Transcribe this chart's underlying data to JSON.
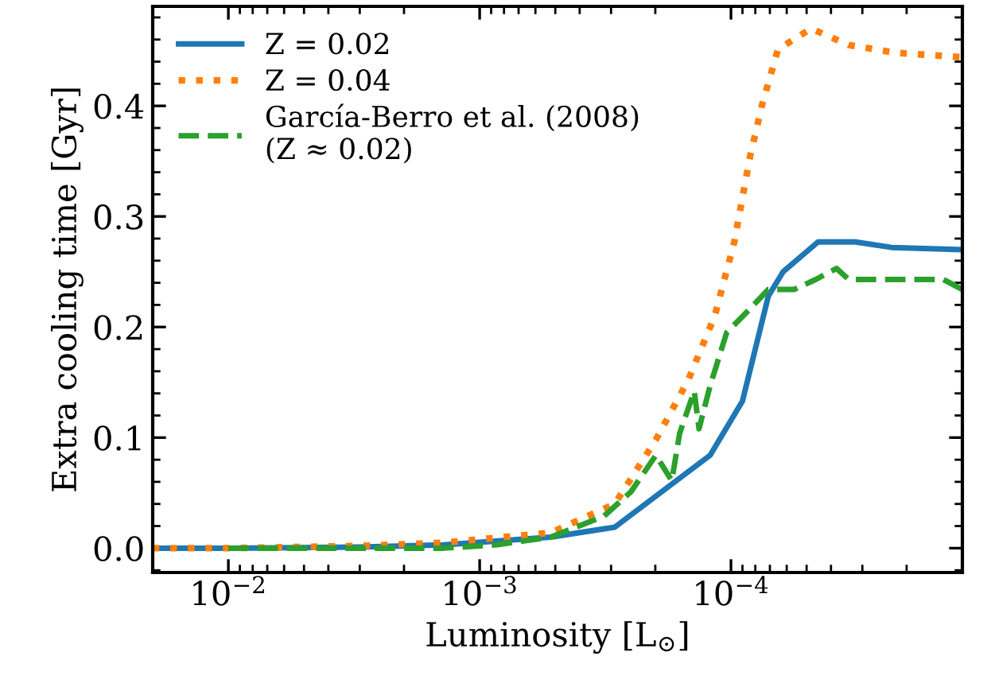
{
  "chart_data": {
    "type": "line",
    "xlabel": "Luminosity [L$_{⊙}$]",
    "ylabel": "Extra cooling time [Gyr]",
    "log": "x",
    "grid": false,
    "legend": "top left",
    "xlim": [
      0.02,
      1.2e-05
    ],
    "xticks": [
      {
        "value": 0.01,
        "label": "10$^{−2}$"
      },
      {
        "value": 0.001,
        "label": "10$^{−3}$"
      },
      {
        "value": 0.0001,
        "label": "10$^{−4}$"
      }
    ],
    "ylim": [
      -0.022,
      0.49
    ],
    "yticks": [
      {
        "value": 0,
        "label": "0.0"
      },
      0.1,
      0.2,
      0.3,
      0.4
    ],
    "series": [
      {
        "name": "Z = 0.02",
        "color": "#1f77b4",
        "line_style": "solid",
        "x": [
          0.02,
          0.01,
          0.003,
          0.00139,
          0.000521,
          0.00029,
          0.000179,
          0.000121,
          9e-05,
          7.1e-05,
          6.2e-05,
          4.5e-05,
          3.2e-05,
          2.3e-05,
          1.2e-05
        ],
        "values": [
          0,
          0,
          0.001,
          0.003,
          0.01,
          0.019,
          0.055,
          0.084,
          0.133,
          0.228,
          0.25,
          0.277,
          0.277,
          0.272,
          0.27
        ]
      },
      {
        "name": "Z = 0.04",
        "color": "#ff7f0e",
        "line_style": "dotted",
        "x": [
          0.02,
          0.01,
          0.003,
          0.00139,
          0.000521,
          0.00029,
          0.000199,
          0.000148,
          0.000116,
          9.7e-05,
          8.4e-05,
          7.5e-05,
          6.5e-05,
          4.8e-05,
          3.4e-05,
          2.2e-05,
          1.2e-05
        ],
        "values": [
          0,
          0,
          0.002,
          0.005,
          0.014,
          0.04,
          0.098,
          0.152,
          0.21,
          0.277,
          0.354,
          0.402,
          0.451,
          0.47,
          0.455,
          0.448,
          0.444
        ]
      },
      {
        "name": "García-Berro et al. (2008)\n(Z ≈ 0.02)",
        "color": "#2ca02c",
        "line_style": "dashed",
        "x": [
          0.01,
          0.003,
          0.00139,
          0.00086,
          0.000521,
          0.00032,
          0.00025,
          0.000199,
          0.000172,
          0.00016,
          0.00014,
          0.000134,
          0.000121,
          0.000104,
          8.6e-05,
          7.1e-05,
          5.6e-05,
          4.6e-05,
          3.8e-05,
          3.4e-05,
          1.43e-05,
          1.2e-05
        ],
        "values": [
          0,
          0,
          0,
          0.003,
          0.01,
          0.029,
          0.051,
          0.084,
          0.061,
          0.104,
          0.142,
          0.108,
          0.147,
          0.195,
          0.214,
          0.234,
          0.234,
          0.243,
          0.253,
          0.243,
          0.243,
          0.234
        ]
      }
    ]
  }
}
